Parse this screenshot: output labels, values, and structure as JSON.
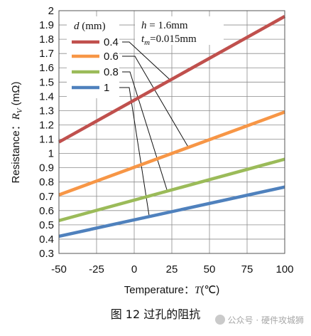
{
  "chart_data": {
    "type": "line",
    "xlabel_prefix": "Temperature：",
    "xlabel_var": "T",
    "xlabel_unit": "(℃)",
    "ylabel_prefix": "Resistance：",
    "ylabel_var": "R",
    "ylabel_sub": "V",
    "ylabel_unit": " (mΩ)",
    "xlim": [
      -50,
      100
    ],
    "ylim": [
      0.3,
      2
    ],
    "x_ticks": [
      "-50",
      "-25",
      "0",
      "25",
      "50",
      "75",
      "100"
    ],
    "y_ticks": [
      "0.3",
      "0.4",
      "0.5",
      "0.6",
      "0.7",
      "0.8",
      "0.9",
      "1",
      "1.1",
      "1.2",
      "1.3",
      "1.4",
      "1.5",
      "1.6",
      "1.7",
      "1.8",
      "1.9",
      "2"
    ],
    "grid": true,
    "legend_position": "top-left",
    "legend_title_var": "d",
    "legend_title_unit": "(mm)",
    "annotation_h": "h = 1.6mm",
    "annotation_t_var": "t",
    "annotation_t_sub": "m",
    "annotation_t_val": "=0.015mm",
    "series": [
      {
        "name": "0.4",
        "color": "#c0504d",
        "x": [
          -50,
          100
        ],
        "y": [
          1.08,
          1.96
        ]
      },
      {
        "name": "0.6",
        "color": "#f79646",
        "x": [
          -50,
          100
        ],
        "y": [
          0.71,
          1.29
        ]
      },
      {
        "name": "0.8",
        "color": "#9bbb59",
        "x": [
          -50,
          100
        ],
        "y": [
          0.53,
          0.96
        ]
      },
      {
        "name": "1",
        "color": "#4f81bd",
        "x": [
          -50,
          100
        ],
        "y": [
          0.42,
          0.765
        ]
      }
    ],
    "callout_x": [
      24,
      36,
      22,
      10
    ]
  },
  "caption": "图 12  过孔的阻抗",
  "watermark": "公众号 · 硬件攻城狮"
}
